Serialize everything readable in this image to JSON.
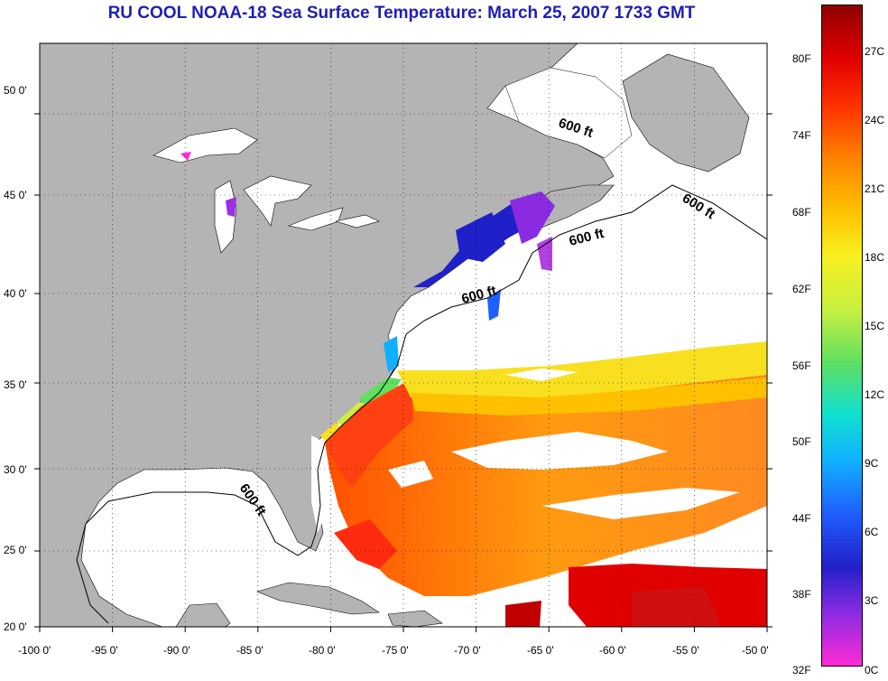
{
  "title": "RU COOL  NOAA-18  Sea Surface Temperature:  March 25, 2007 1733 GMT",
  "map": {
    "lon_labels": [
      "-100 0'",
      "-95 0'",
      "-90 0'",
      "-85 0'",
      "-80 0'",
      "-75 0'",
      "-70 0'",
      "-65 0'",
      "-60 0'",
      "-55 0'",
      "-50 0'"
    ],
    "lat_labels": [
      "50 0'",
      "45 0'",
      "40 0'",
      "35 0'",
      "30 0'",
      "25 0'",
      "20 0'"
    ],
    "contour_labels": [
      "600 ft",
      "600 ft",
      "600 ft",
      "600 ft",
      "600 ft"
    ],
    "colors": {
      "land": "#b4b4b4",
      "ocean_nodata": "#ffffff"
    },
    "graticule": "dotted"
  },
  "colorbar": {
    "fahrenheit_labels": [
      "80F",
      "74F",
      "68F",
      "62F",
      "56F",
      "50F",
      "44F",
      "38F",
      "32F"
    ],
    "celsius_labels": [
      "27C",
      "24C",
      "21C",
      "18C",
      "15C",
      "12C",
      "9C",
      "6C",
      "3C",
      "0C"
    ],
    "colormap": [
      "#ff2bd6",
      "#8a2be2",
      "#2020c8",
      "#1f5fff",
      "#10b0ff",
      "#10e0d0",
      "#60e060",
      "#c8f040",
      "#f8f020",
      "#ffc000",
      "#ff8000",
      "#ff3000",
      "#e00000",
      "#900000"
    ]
  }
}
